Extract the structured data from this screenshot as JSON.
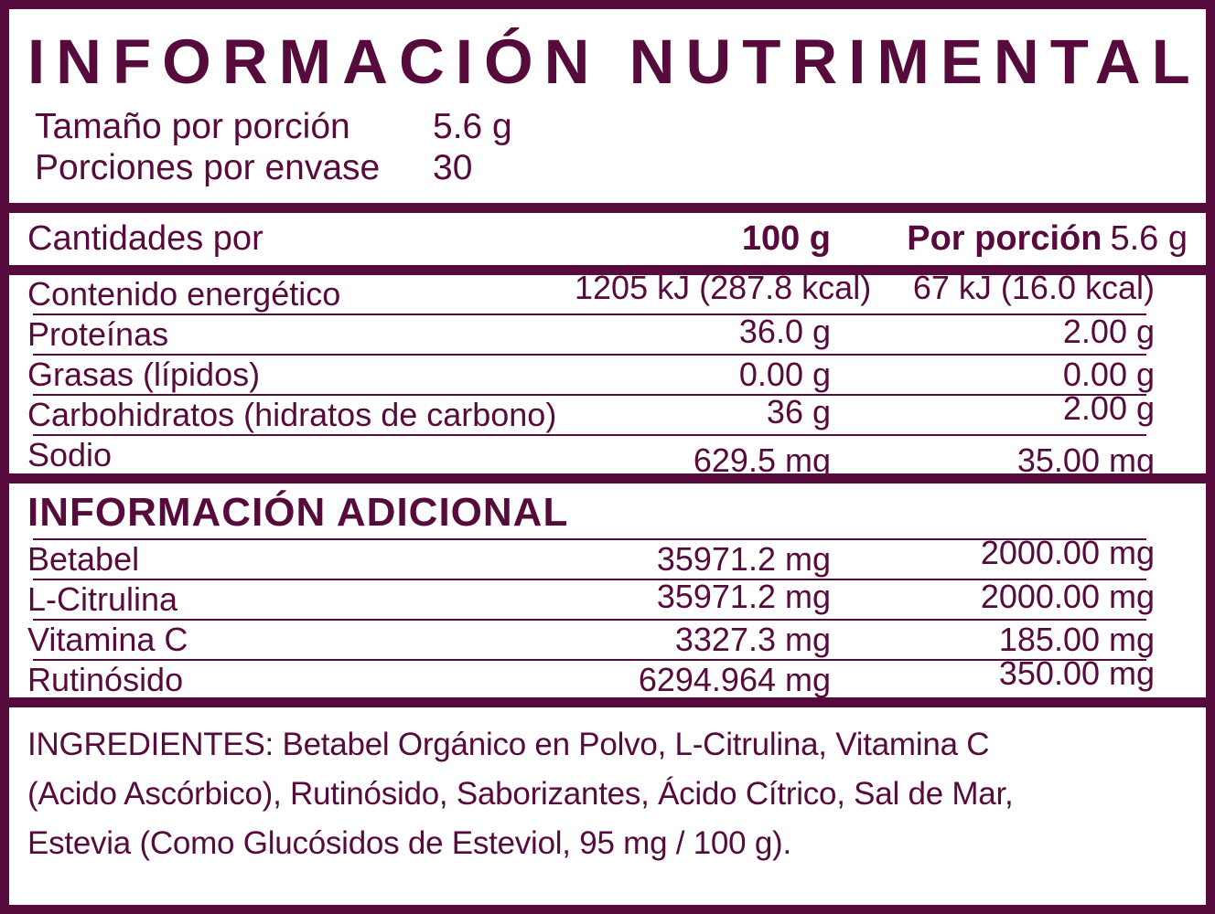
{
  "colors": {
    "accent": "#570B3D",
    "panel_background": "#FFFFFF"
  },
  "header": {
    "title": "INFORMACIÓN NUTRIMENTAL",
    "serving_rows": [
      {
        "label": "Tamaño por porción",
        "value": "5.6 g"
      },
      {
        "label": "Porciones por envase",
        "value": "30"
      }
    ]
  },
  "table": {
    "header": {
      "label": "Cantidades por",
      "col_100g": "100 g",
      "col_portion_bold": "Por porción",
      "col_portion_value": "5.6 g"
    },
    "rows": [
      {
        "label": "Contenido energético",
        "per_100g": "1205 kJ (287.8 kcal)",
        "per_portion": "67 kJ (16.0 kcal)"
      },
      {
        "label": "Proteínas",
        "per_100g": "36.0 g",
        "per_portion": "2.00 g"
      },
      {
        "label": "Grasas (lípidos)",
        "per_100g": "0.00 g",
        "per_portion": "0.00 g"
      },
      {
        "label": "Carbohidratos (hidratos de carbono)",
        "per_100g": "36 g",
        "per_portion": "2.00 g"
      },
      {
        "label": "Sodio",
        "per_100g": "629.5 mg",
        "per_portion": "35.00 mg"
      }
    ]
  },
  "additional": {
    "title": "INFORMACIÓN ADICIONAL",
    "rows": [
      {
        "label": "Betabel",
        "per_100g": "35971.2 mg",
        "per_portion": "2000.00 mg"
      },
      {
        "label": "L-Citrulina",
        "per_100g": "35971.2 mg",
        "per_portion": "2000.00 mg"
      },
      {
        "label": "Vitamina C",
        "per_100g": "3327.3 mg",
        "per_portion": "185.00 mg"
      },
      {
        "label": "Rutinósido",
        "per_100g": "6294.964 mg",
        "per_portion": "350.00 mg"
      }
    ]
  },
  "ingredients": {
    "lines": [
      "INGREDIENTES: Betabel Orgánico en Polvo, L-Citrulina, Vitamina C",
      "(Acido Ascórbico), Rutinósido, Saborizantes, Ácido Cítrico, Sal de Mar,",
      "Estevia (Como Glucósidos de Esteviol, 95 mg / 100 g)."
    ]
  }
}
